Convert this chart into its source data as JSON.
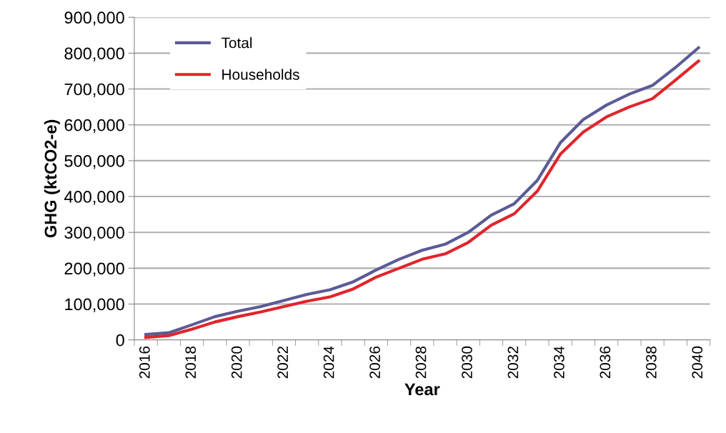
{
  "chart_data": {
    "type": "line",
    "xlabel": "Year",
    "ylabel": "GHG (ktCO2-e)",
    "categories": [
      "2016",
      null,
      "2018",
      null,
      "2020",
      null,
      "2022",
      null,
      "2024",
      null,
      "2026",
      null,
      "2028",
      null,
      "2030",
      null,
      "2032",
      null,
      "2034",
      null,
      "2036",
      null,
      "2038",
      null,
      "2040"
    ],
    "series": [
      {
        "name": "Total",
        "color": "#5b5b96",
        "values": [
          15000,
          20000,
          42000,
          65000,
          80000,
          93000,
          110000,
          127000,
          140000,
          162000,
          195000,
          225000,
          250000,
          267000,
          300000,
          348000,
          380000,
          445000,
          550000,
          615000,
          655000,
          686000,
          710000,
          760000,
          815000
        ]
      },
      {
        "name": "Households",
        "color": "#e0252b",
        "values": [
          7000,
          12000,
          30000,
          50000,
          65000,
          78000,
          93000,
          108000,
          120000,
          142000,
          175000,
          200000,
          225000,
          240000,
          272000,
          320000,
          352000,
          415000,
          518000,
          580000,
          622000,
          650000,
          673000,
          725000,
          778000
        ]
      }
    ],
    "ylim": [
      0,
      900000
    ],
    "yticks": [
      {
        "value": 0,
        "label": "0"
      },
      {
        "value": 100000,
        "label": "100,000"
      },
      {
        "value": 200000,
        "label": "200,000"
      },
      {
        "value": 300000,
        "label": "300,000"
      },
      {
        "value": 400000,
        "label": "400,000"
      },
      {
        "value": 500000,
        "label": "500,000"
      },
      {
        "value": 600000,
        "label": "600,000"
      },
      {
        "value": 700000,
        "label": "700,000"
      },
      {
        "value": 800000,
        "label": "800,000"
      },
      {
        "value": 900000,
        "label": "900,000"
      }
    ],
    "grid": "y",
    "legend": "top left",
    "marker": "none",
    "line_style": "solid"
  }
}
